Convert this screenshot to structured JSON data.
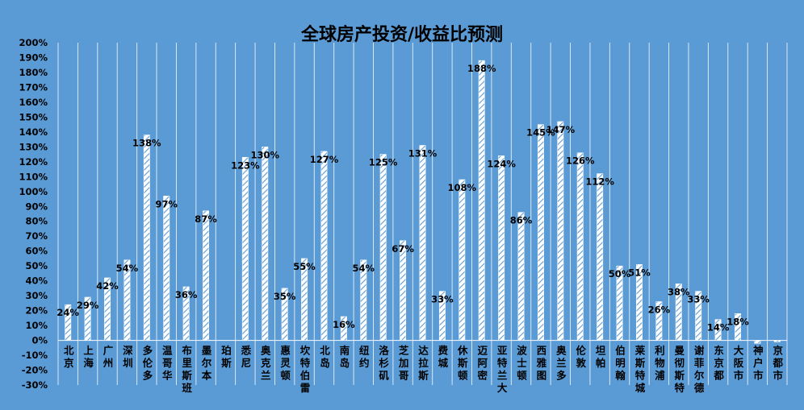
{
  "chart_data": {
    "type": "bar",
    "title": "全球房产投资/收益比预测",
    "xlabel": "",
    "ylabel": "",
    "ylim": [
      -30,
      200
    ],
    "ytick_step": 10,
    "ytick_suffix": "%",
    "grid": true,
    "legend": "none",
    "colors": {
      "background": "#5b9bd5",
      "bar_fill": "#ffffff",
      "bar_hatch": "#5b9bd5",
      "gridline": "#ffffff",
      "axis": "#e8f1fa",
      "text": "#000000"
    },
    "categories": [
      "北京",
      "上海",
      "广州",
      "深圳",
      "多伦多",
      "温哥华",
      "布里斯班",
      "墨尔本",
      "珀斯",
      "悉尼",
      "奥克兰",
      "惠灵顿",
      "坎特伯雷",
      "北岛",
      "南岛",
      "纽约",
      "洛杉矶",
      "芝加哥",
      "达拉斯",
      "费城",
      "休斯顿",
      "迈阿密",
      "亚特兰大",
      "波士顿",
      "西雅图",
      "奥兰多",
      "伦敦",
      "坦帕",
      "伯明翰",
      "莱斯特城",
      "利物浦",
      "曼彻斯特",
      "谢菲尔德",
      "东京都",
      "大阪市",
      "神户市",
      "京都市"
    ],
    "values": [
      24,
      29,
      42,
      54,
      138,
      97,
      36,
      87,
      0,
      123,
      130,
      35,
      55,
      127,
      16,
      54,
      125,
      67,
      131,
      33,
      108,
      188,
      124,
      86,
      145,
      147,
      126,
      112,
      50,
      51,
      26,
      38,
      33,
      14,
      18,
      -2,
      -1
    ],
    "data_labels": [
      "24%",
      "29%",
      "42%",
      "54%",
      "138%",
      "97%",
      "36%",
      "87%",
      "",
      "123%",
      "130%",
      "35%",
      "55%",
      "127%",
      "16%",
      "54%",
      "125%",
      "67%",
      "131%",
      "33%",
      "108%",
      "188%",
      "124%",
      "86%",
      "145%",
      "147%",
      "126%",
      "112%",
      "50%",
      "51%",
      "26%",
      "38%",
      "33%",
      "14%",
      "18%",
      "",
      ""
    ]
  }
}
